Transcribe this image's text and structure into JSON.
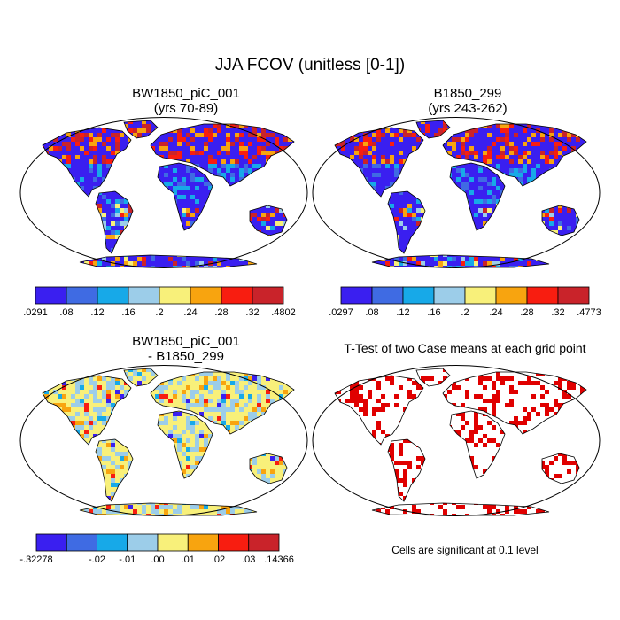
{
  "main_title": "JJA FCOV (unitless [0-1])",
  "panels": {
    "case1": {
      "title_line1": "BW1850_piC_001",
      "title_line2": "(yrs 70-89)"
    },
    "case2": {
      "title_line1": "B1850_299",
      "title_line2": "(yrs 243-262)"
    },
    "diff": {
      "title_line1": "BW1850_piC_001",
      "title_line2": "- B1850_299"
    },
    "ttest": {
      "title": "T-Test of two Case means at each grid point",
      "footnote": "Cells are significant at 0.1 level"
    }
  },
  "colors": {
    "palette": [
      "#3a1ff0",
      "#3f6be3",
      "#17a9e8",
      "#9ccde9",
      "#f8f07a",
      "#f8a40f",
      "#f81d10",
      "#c9232a"
    ],
    "land_outline": "#000000",
    "significance": "#e00000"
  },
  "chart_data": [
    {
      "type": "heatmap",
      "map_projection": "robinson",
      "title": "BW1850_piC_001 (yrs 70-89)",
      "colorbar_labels": [
        ".0291",
        ".08",
        ".12",
        ".16",
        ".2",
        ".24",
        ".28",
        ".32",
        ".4802"
      ],
      "colorbar_min": 0.0291,
      "colorbar_max": 0.4802
    },
    {
      "type": "heatmap",
      "map_projection": "robinson",
      "title": "B1850_299 (yrs 243-262)",
      "colorbar_labels": [
        ".0297",
        ".08",
        ".12",
        ".16",
        ".2",
        ".24",
        ".28",
        ".32",
        ".4773"
      ],
      "colorbar_min": 0.0297,
      "colorbar_max": 0.4773
    },
    {
      "type": "heatmap",
      "map_projection": "robinson",
      "title": "BW1850_piC_001 - B1850_299",
      "colorbar_labels": [
        "-.32278",
        "-.02",
        "-.01",
        ".00",
        ".01",
        ".02",
        ".03",
        ".14366"
      ],
      "colorbar_min": -0.32278,
      "colorbar_max": 0.14366
    },
    {
      "type": "heatmap",
      "map_projection": "robinson",
      "title": "T-Test of two Case means at each grid point",
      "note": "Cells are significant at 0.1 level"
    }
  ]
}
